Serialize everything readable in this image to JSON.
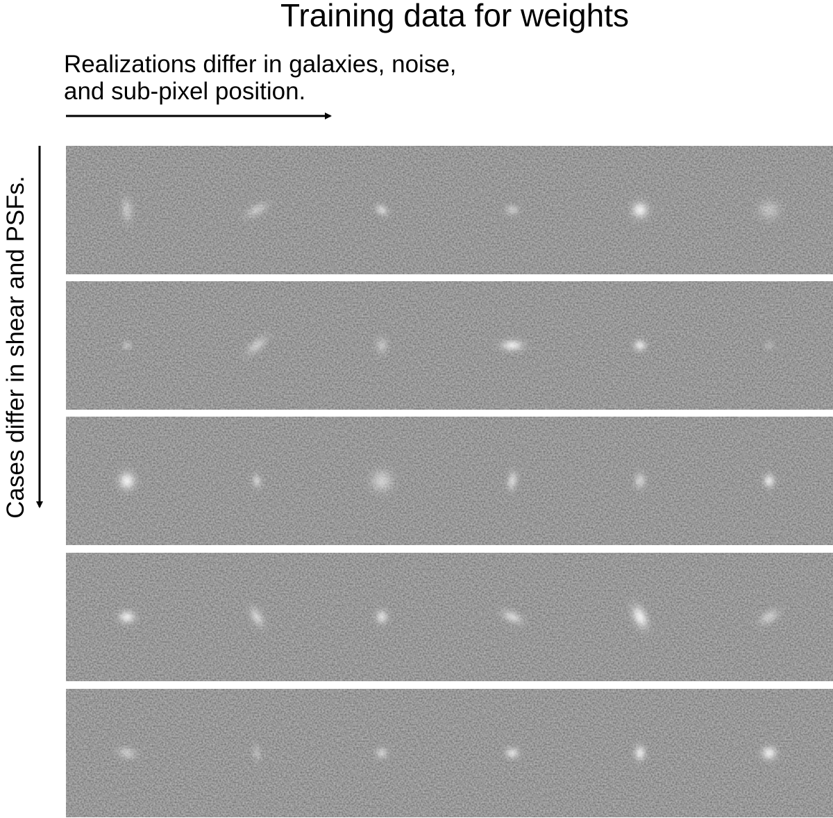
{
  "header": {
    "title": "Training data for weights"
  },
  "realizations_label": {
    "lines": [
      "Realizations differ in galaxies, noise,",
      "and sub-pixel position."
    ]
  },
  "cases_label": {
    "text": "Cases differ in shear and PSFs."
  }
}
